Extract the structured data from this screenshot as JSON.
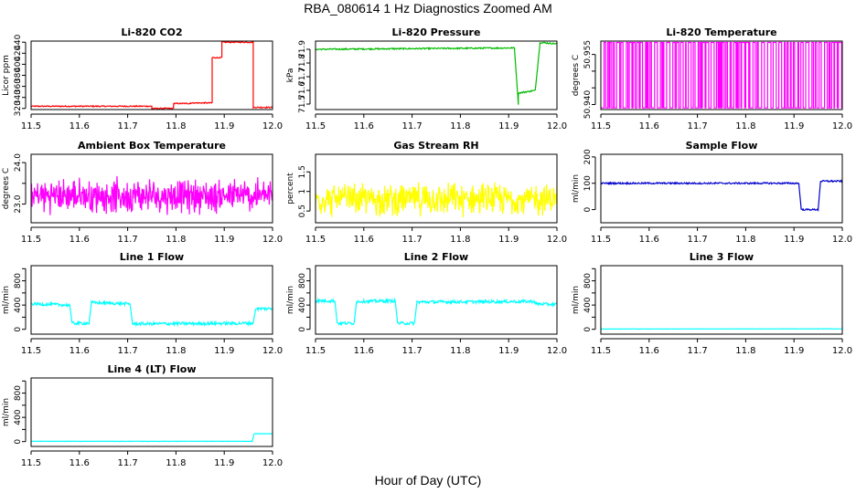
{
  "title": "RBA_080614  1 Hz Diagnostics Zoomed AM",
  "xaxis_title": "Hour of Day (UTC)",
  "chart_data": [
    {
      "type": "line",
      "title": "Li-820 CO2",
      "ylabel": "Licor ppm",
      "xlim": [
        11.5,
        12.0
      ],
      "ylim": [
        318,
        442
      ],
      "yticks": [
        320,
        340,
        360,
        380,
        400,
        420,
        440
      ],
      "color": "#ff0000",
      "series": [
        {
          "segments": [
            {
              "x": [
                11.5,
                11.75
              ],
              "y": [
                324,
                324
              ]
            },
            {
              "x": [
                11.75,
                11.75
              ],
              "y": [
                324,
                320
              ]
            },
            {
              "x": [
                11.75,
                11.795
              ],
              "y": [
                320,
                320
              ]
            },
            {
              "x": [
                11.795,
                11.795
              ],
              "y": [
                320,
                329
              ]
            },
            {
              "x": [
                11.795,
                11.83
              ],
              "y": [
                329,
                329
              ]
            },
            {
              "x": [
                11.83,
                11.875
              ],
              "y": [
                330,
                330
              ]
            },
            {
              "x": [
                11.875,
                11.875
              ],
              "y": [
                330,
                412
              ]
            },
            {
              "x": [
                11.875,
                11.895
              ],
              "y": [
                412,
                412
              ]
            },
            {
              "x": [
                11.895,
                11.96
              ],
              "y": [
                440,
                440
              ]
            },
            {
              "x": [
                11.96,
                11.96
              ],
              "y": [
                440,
                322
              ]
            },
            {
              "x": [
                11.96,
                12.0
              ],
              "y": [
                322,
                322
              ]
            }
          ],
          "noise": 1.0
        }
      ]
    },
    {
      "type": "line",
      "title": "Li-820 Pressure",
      "ylabel": "kPa",
      "xlim": [
        11.5,
        12.0
      ],
      "ylim": [
        71.46,
        71.96
      ],
      "yticks": [
        71.5,
        71.6,
        71.7,
        71.8,
        71.9
      ],
      "color": "#00bb00",
      "series": [
        {
          "segments": [
            {
              "x": [
                11.5,
                11.912
              ],
              "y": [
                71.9,
                71.91
              ]
            },
            {
              "x": [
                11.912,
                11.92
              ],
              "y": [
                71.91,
                71.5
              ]
            },
            {
              "x": [
                11.92,
                11.955
              ],
              "y": [
                71.58,
                71.6
              ]
            },
            {
              "x": [
                11.955,
                11.965
              ],
              "y": [
                71.6,
                71.95
              ]
            },
            {
              "x": [
                11.965,
                12.0
              ],
              "y": [
                71.95,
                71.94
              ]
            }
          ],
          "noise": 0.005
        }
      ]
    },
    {
      "type": "line",
      "title": "Li-820 Temperature",
      "ylabel": "degrees C",
      "xlim": [
        11.5,
        12.0
      ],
      "ylim": [
        50.9385,
        50.959
      ],
      "yticks": [
        50.94,
        50.945,
        50.95,
        50.955
      ],
      "yticklabels": [
        "50.940",
        "",
        "",
        "50.955"
      ],
      "color": "#ff00ff",
      "series": [
        {
          "low": 50.939,
          "high": 50.9586,
          "toggle": true
        }
      ]
    },
    {
      "type": "line",
      "title": "Ambient Box Temperature",
      "ylabel": "degrees C",
      "xlim": [
        11.5,
        12.0
      ],
      "ylim": [
        22.55,
        24.2
      ],
      "yticks": [
        23.0,
        23.5,
        24.0
      ],
      "yticklabels": [
        "23.0",
        "",
        "24.0"
      ],
      "color": "#ff00ff",
      "series": [
        {
          "mean": 23.2,
          "noise": 0.35
        }
      ]
    },
    {
      "type": "line",
      "title": "Gas Stream RH",
      "ylabel": "percent",
      "xlim": [
        11.5,
        12.0
      ],
      "ylim": [
        0.2,
        1.95
      ],
      "yticks": [
        0.5,
        1.0,
        1.5
      ],
      "color": "#ffff00",
      "series": [
        {
          "mean": 0.8,
          "noise": 0.35
        }
      ]
    },
    {
      "type": "line",
      "title": "Sample Flow",
      "ylabel": "ml/min",
      "xlim": [
        11.5,
        12.0
      ],
      "ylim": [
        -50,
        210
      ],
      "yticks": [
        0,
        100,
        200
      ],
      "color": "#0000cc",
      "series": [
        {
          "segments": [
            {
              "x": [
                11.5,
                11.91
              ],
              "y": [
                100,
                100
              ]
            },
            {
              "x": [
                11.91,
                11.915
              ],
              "y": [
                100,
                0
              ]
            },
            {
              "x": [
                11.915,
                11.95
              ],
              "y": [
                0,
                0
              ]
            },
            {
              "x": [
                11.95,
                11.955
              ],
              "y": [
                0,
                108
              ]
            },
            {
              "x": [
                11.955,
                12.0
              ],
              "y": [
                108,
                108
              ]
            }
          ],
          "noise": 3
        }
      ]
    },
    {
      "type": "line",
      "title": "Line 1 Flow",
      "ylabel": "ml/min",
      "xlim": [
        11.5,
        12.0
      ],
      "ylim": [
        -80,
        1050
      ],
      "yticks": [
        0,
        200,
        400,
        600,
        800,
        1000
      ],
      "yticklabels": [
        "0",
        "",
        "400",
        "",
        "800",
        ""
      ],
      "color": "#00ffff",
      "series": [
        {
          "segments": [
            {
              "x": [
                11.5,
                11.58
              ],
              "y": [
                420,
                400
              ]
            },
            {
              "x": [
                11.58,
                11.585
              ],
              "y": [
                400,
                100
              ]
            },
            {
              "x": [
                11.585,
                11.62
              ],
              "y": [
                100,
                100
              ]
            },
            {
              "x": [
                11.62,
                11.625
              ],
              "y": [
                100,
                440
              ]
            },
            {
              "x": [
                11.625,
                11.705
              ],
              "y": [
                440,
                420
              ]
            },
            {
              "x": [
                11.705,
                11.71
              ],
              "y": [
                420,
                90
              ]
            },
            {
              "x": [
                11.71,
                11.96
              ],
              "y": [
                90,
                100
              ]
            },
            {
              "x": [
                11.96,
                11.965
              ],
              "y": [
                100,
                340
              ]
            },
            {
              "x": [
                11.965,
                12.0
              ],
              "y": [
                340,
                340
              ]
            }
          ],
          "noise": 25
        }
      ]
    },
    {
      "type": "line",
      "title": "Line 2 Flow",
      "ylabel": "ml/min",
      "xlim": [
        11.5,
        12.0
      ],
      "ylim": [
        -80,
        1050
      ],
      "yticks": [
        0,
        200,
        400,
        600,
        800,
        1000
      ],
      "yticklabels": [
        "0",
        "",
        "400",
        "",
        "800",
        ""
      ],
      "color": "#00ffff",
      "series": [
        {
          "segments": [
            {
              "x": [
                11.5,
                11.54
              ],
              "y": [
                470,
                470
              ]
            },
            {
              "x": [
                11.54,
                11.545
              ],
              "y": [
                470,
                100
              ]
            },
            {
              "x": [
                11.545,
                11.58
              ],
              "y": [
                100,
                100
              ]
            },
            {
              "x": [
                11.58,
                11.585
              ],
              "y": [
                100,
                460
              ]
            },
            {
              "x": [
                11.585,
                11.665
              ],
              "y": [
                460,
                470
              ]
            },
            {
              "x": [
                11.665,
                11.67
              ],
              "y": [
                470,
                100
              ]
            },
            {
              "x": [
                11.67,
                11.705
              ],
              "y": [
                100,
                100
              ]
            },
            {
              "x": [
                11.705,
                11.71
              ],
              "y": [
                100,
                450
              ]
            },
            {
              "x": [
                11.71,
                11.955
              ],
              "y": [
                450,
                460
              ]
            },
            {
              "x": [
                11.955,
                12.0
              ],
              "y": [
                420,
                410
              ]
            }
          ],
          "noise": 25
        }
      ]
    },
    {
      "type": "line",
      "title": "Line 3 Flow",
      "ylabel": "ml/min",
      "xlim": [
        11.5,
        12.0
      ],
      "ylim": [
        -80,
        1050
      ],
      "yticks": [
        0,
        200,
        400,
        600,
        800,
        1000
      ],
      "yticklabels": [
        "0",
        "",
        "400",
        "",
        "800",
        ""
      ],
      "color": "#00ffff",
      "series": [
        {
          "segments": [
            {
              "x": [
                11.5,
                12.0
              ],
              "y": [
                5,
                8
              ]
            }
          ],
          "noise": 3
        }
      ]
    },
    {
      "type": "line",
      "title": "Line 4 (LT) Flow",
      "ylabel": "ml/min",
      "xlim": [
        11.5,
        12.0
      ],
      "ylim": [
        -80,
        1050
      ],
      "yticks": [
        0,
        200,
        400,
        600,
        800,
        1000
      ],
      "yticklabels": [
        "0",
        "",
        "400",
        "",
        "800",
        ""
      ],
      "color": "#00ffff",
      "series": [
        {
          "segments": [
            {
              "x": [
                11.5,
                11.958
              ],
              "y": [
                5,
                5
              ]
            },
            {
              "x": [
                11.958,
                11.962
              ],
              "y": [
                5,
                130
              ]
            },
            {
              "x": [
                11.962,
                12.0
              ],
              "y": [
                130,
                130
              ]
            }
          ],
          "noise": 3
        }
      ]
    }
  ],
  "xticks": [
    11.5,
    11.6,
    11.7,
    11.8,
    11.9,
    12.0
  ],
  "xticklabels": [
    "11.5",
    "11.6",
    "11.7",
    "11.8",
    "11.9",
    "12.0"
  ]
}
